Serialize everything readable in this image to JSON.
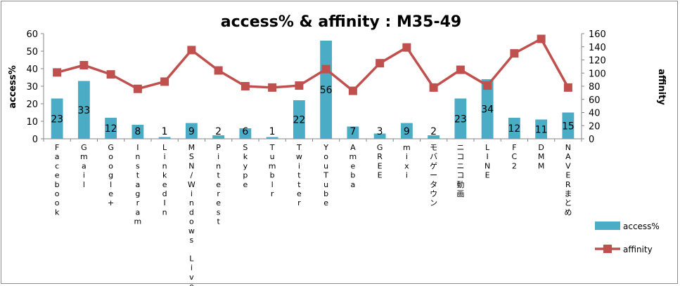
{
  "chart_data": {
    "type": "bar+line",
    "title": "access% & affinity : M35-49",
    "y_left_label": "access%",
    "y_right_label": "affinity",
    "y_left_range": [
      0,
      60
    ],
    "y_left_ticks": [
      "0",
      "10",
      "20",
      "30",
      "40",
      "50",
      "60"
    ],
    "y_right_range": [
      0,
      160
    ],
    "y_right_ticks": [
      "0",
      "20",
      "40",
      "60",
      "80",
      "100",
      "120",
      "140",
      "160"
    ],
    "categories": [
      "Facebook",
      "Gmail",
      "Google+",
      "Instagram",
      "LinkedIn",
      "MSN/Windows Live",
      "Pinterest",
      "Skype",
      "Tumblr",
      "Twitter",
      "YouTube",
      "Ameba",
      "GREE",
      "mixi",
      "モバゲータウン",
      "ニコニコ動画",
      "LINE",
      "FC2",
      "DMM",
      "NAVERまとめ"
    ],
    "category_labels_display": [
      "Facebook",
      "Gmail",
      "Google+",
      "Instagram",
      "LinkedIn",
      "MSN/Windows Live",
      "Pinterest",
      "Skype",
      "Tumblr",
      "Twitter",
      "YouTube",
      "Ameba",
      "GREE",
      "mixi",
      "モバゲータウン",
      "ニコニコ動画",
      "LINE",
      "FC2",
      "DMM",
      "NAVERまとめ"
    ],
    "series": [
      {
        "name": "access%",
        "type": "bar",
        "axis": "left",
        "color": "#4bacc6",
        "values": [
          23,
          33,
          12,
          8,
          1,
          9,
          2,
          6,
          1,
          22,
          56,
          7,
          3,
          9,
          2,
          23,
          34,
          12,
          11,
          15
        ],
        "data_labels": [
          "23",
          "33",
          "12",
          "8",
          "1",
          "9",
          "2",
          "6",
          "1",
          "22",
          "56",
          "7",
          "3",
          "9",
          "2",
          "23",
          "34",
          "12",
          "11",
          "15"
        ]
      },
      {
        "name": "affinity",
        "type": "line",
        "axis": "right",
        "color": "#c0504d",
        "values": [
          101,
          112,
          98,
          76,
          87,
          135,
          104,
          80,
          78,
          81,
          106,
          73,
          115,
          139,
          78,
          105,
          81,
          130,
          152,
          78
        ]
      }
    ],
    "grid": false,
    "legend": {
      "position": "bottom-right",
      "items": [
        "access%",
        "affinity"
      ]
    }
  }
}
